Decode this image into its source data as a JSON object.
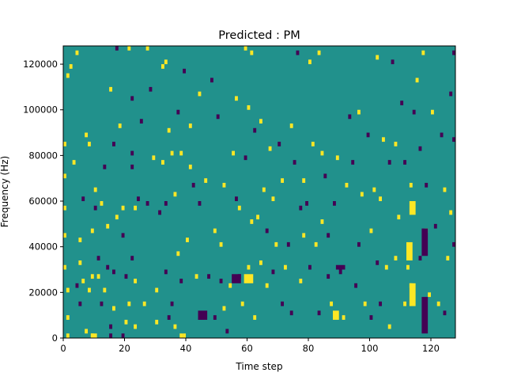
{
  "chart_data": {
    "type": "heatmap",
    "title": "Predicted : PM",
    "xlabel": "Time step",
    "ylabel": "Frequency (Hz)",
    "xlim": [
      0,
      128
    ],
    "ylim": [
      0,
      128000
    ],
    "x_ticks": [
      0,
      20,
      40,
      60,
      80,
      100,
      120
    ],
    "x_tick_labels": [
      "0",
      "20",
      "40",
      "60",
      "80",
      "100",
      "120"
    ],
    "y_ticks": [
      0,
      20000,
      40000,
      60000,
      80000,
      100000,
      120000
    ],
    "y_tick_labels": [
      "0",
      "20000",
      "40000",
      "60000",
      "80000",
      "100000",
      "120000"
    ],
    "grid": false,
    "colormap": "viridis",
    "background_value": 0,
    "colors": {
      "-1": "#440154",
      "0": "#21918c",
      "1": "#fde725"
    },
    "cell_height_hz": 2000,
    "cells": [
      [
        0,
        70000,
        1
      ],
      [
        0,
        84000,
        1
      ],
      [
        0,
        56000,
        1
      ],
      [
        0,
        44000,
        1
      ],
      [
        0,
        30000,
        1
      ],
      [
        1,
        20000,
        1
      ],
      [
        1,
        8000,
        1
      ],
      [
        1,
        0,
        1
      ],
      [
        1,
        114000,
        1
      ],
      [
        2,
        118000,
        1
      ],
      [
        3,
        76000,
        1
      ],
      [
        4,
        124000,
        1
      ],
      [
        4,
        22000,
        -1
      ],
      [
        5,
        14000,
        -1
      ],
      [
        5,
        32000,
        1
      ],
      [
        5,
        42000,
        1
      ],
      [
        6,
        24000,
        1
      ],
      [
        6,
        60000,
        -1
      ],
      [
        7,
        88000,
        1
      ],
      [
        7,
        2000,
        1
      ],
      [
        8,
        20000,
        1
      ],
      [
        8,
        84000,
        1
      ],
      [
        9,
        26000,
        1
      ],
      [
        9,
        46000,
        1
      ],
      [
        9,
        0,
        1
      ],
      [
        10,
        64000,
        1
      ],
      [
        10,
        56000,
        -1
      ],
      [
        11,
        26000,
        1
      ],
      [
        11,
        34000,
        -1
      ],
      [
        12,
        14000,
        -1
      ],
      [
        12,
        58000,
        1
      ],
      [
        13,
        74000,
        -1
      ],
      [
        13,
        20000,
        1
      ],
      [
        14,
        48000,
        1
      ],
      [
        14,
        30000,
        -1
      ],
      [
        15,
        108000,
        1
      ],
      [
        15,
        4000,
        -1
      ],
      [
        15,
        0,
        -1
      ],
      [
        16,
        28000,
        -1
      ],
      [
        16,
        12000,
        1
      ],
      [
        16,
        84000,
        -1
      ],
      [
        17,
        52000,
        1
      ],
      [
        17,
        126000,
        -1
      ],
      [
        18,
        92000,
        1
      ],
      [
        19,
        56000,
        1
      ],
      [
        19,
        44000,
        -1
      ],
      [
        19,
        0,
        -1
      ],
      [
        20,
        26000,
        -1
      ],
      [
        20,
        6000,
        1
      ],
      [
        21,
        126000,
        1
      ],
      [
        21,
        14000,
        1
      ],
      [
        22,
        80000,
        -1
      ],
      [
        22,
        74000,
        -1
      ],
      [
        22,
        104000,
        -1
      ],
      [
        22,
        34000,
        -1
      ],
      [
        23,
        56000,
        1
      ],
      [
        23,
        24000,
        1
      ],
      [
        23,
        4000,
        1
      ],
      [
        24,
        60000,
        -1
      ],
      [
        25,
        94000,
        -1
      ],
      [
        26,
        14000,
        1
      ],
      [
        27,
        126000,
        1
      ],
      [
        27,
        58000,
        -1
      ],
      [
        28,
        108000,
        -1
      ],
      [
        29,
        78000,
        1
      ],
      [
        30,
        20000,
        1
      ],
      [
        30,
        6000,
        1
      ],
      [
        31,
        54000,
        -1
      ],
      [
        32,
        118000,
        1
      ],
      [
        32,
        76000,
        1
      ],
      [
        33,
        28000,
        -1
      ],
      [
        33,
        58000,
        -1
      ],
      [
        33,
        120000,
        1
      ],
      [
        34,
        8000,
        -1
      ],
      [
        34,
        90000,
        1
      ],
      [
        35,
        80000,
        1
      ],
      [
        35,
        14000,
        -1
      ],
      [
        36,
        62000,
        1
      ],
      [
        36,
        4000,
        1
      ],
      [
        37,
        98000,
        -1
      ],
      [
        37,
        36000,
        1
      ],
      [
        38,
        80000,
        1
      ],
      [
        38,
        24000,
        -1
      ],
      [
        38,
        0,
        1
      ],
      [
        39,
        0,
        1
      ],
      [
        39,
        116000,
        -1
      ],
      [
        40,
        42000,
        1
      ],
      [
        41,
        74000,
        1
      ],
      [
        41,
        92000,
        1
      ],
      [
        42,
        66000,
        -1
      ],
      [
        43,
        26000,
        1
      ],
      [
        44,
        106000,
        1
      ],
      [
        44,
        58000,
        -1
      ],
      [
        44,
        8000,
        -1
      ],
      [
        45,
        8000,
        -1
      ],
      [
        46,
        68000,
        1
      ],
      [
        47,
        26000,
        -1
      ],
      [
        48,
        112000,
        -1
      ],
      [
        49,
        46000,
        1
      ],
      [
        49,
        8000,
        -1
      ],
      [
        50,
        96000,
        -1
      ],
      [
        51,
        40000,
        1
      ],
      [
        51,
        24000,
        -1
      ],
      [
        52,
        66000,
        1
      ],
      [
        52,
        12000,
        1
      ],
      [
        53,
        2000,
        -1
      ],
      [
        54,
        22000,
        1
      ],
      [
        55,
        80000,
        1
      ],
      [
        56,
        104000,
        1
      ],
      [
        56,
        60000,
        -1
      ],
      [
        57,
        56000,
        1
      ],
      [
        57,
        26000,
        -1
      ],
      [
        58,
        14000,
        1
      ],
      [
        59,
        126000,
        1
      ],
      [
        59,
        78000,
        -1
      ],
      [
        60,
        30000,
        1
      ],
      [
        60,
        100000,
        1
      ],
      [
        61,
        124000,
        1
      ],
      [
        61,
        50000,
        1
      ],
      [
        62,
        90000,
        -1
      ],
      [
        62,
        8000,
        1
      ],
      [
        63,
        52000,
        1
      ],
      [
        64,
        32000,
        1
      ],
      [
        64,
        94000,
        1
      ],
      [
        65,
        64000,
        1
      ],
      [
        66,
        46000,
        -1
      ],
      [
        66,
        22000,
        1
      ],
      [
        67,
        82000,
        1
      ],
      [
        68,
        60000,
        1
      ],
      [
        68,
        28000,
        -1
      ],
      [
        69,
        40000,
        1
      ],
      [
        70,
        84000,
        -1
      ],
      [
        71,
        14000,
        -1
      ],
      [
        71,
        68000,
        1
      ],
      [
        72,
        30000,
        1
      ],
      [
        73,
        40000,
        -1
      ],
      [
        74,
        92000,
        1
      ],
      [
        74,
        10000,
        -1
      ],
      [
        75,
        76000,
        -1
      ],
      [
        76,
        124000,
        -1
      ],
      [
        77,
        24000,
        1
      ],
      [
        77,
        56000,
        -1
      ],
      [
        78,
        44000,
        1
      ],
      [
        78,
        68000,
        1
      ],
      [
        79,
        58000,
        -1
      ],
      [
        80,
        30000,
        -1
      ],
      [
        80,
        120000,
        1
      ],
      [
        81,
        84000,
        1
      ],
      [
        82,
        40000,
        1
      ],
      [
        83,
        124000,
        1
      ],
      [
        83,
        10000,
        -1
      ],
      [
        84,
        80000,
        1
      ],
      [
        84,
        50000,
        1
      ],
      [
        85,
        70000,
        -1
      ],
      [
        86,
        44000,
        -1
      ],
      [
        86,
        26000,
        -1
      ],
      [
        87,
        14000,
        1
      ],
      [
        88,
        58000,
        -1
      ],
      [
        89,
        78000,
        1
      ],
      [
        90,
        28000,
        -1
      ],
      [
        91,
        8000,
        1
      ],
      [
        92,
        66000,
        1
      ],
      [
        93,
        96000,
        -1
      ],
      [
        94,
        76000,
        -1
      ],
      [
        95,
        22000,
        -1
      ],
      [
        96,
        98000,
        1
      ],
      [
        96,
        40000,
        -1
      ],
      [
        97,
        62000,
        1
      ],
      [
        98,
        14000,
        1
      ],
      [
        99,
        88000,
        -1
      ],
      [
        100,
        46000,
        1
      ],
      [
        100,
        8000,
        -1
      ],
      [
        101,
        64000,
        1
      ],
      [
        102,
        122000,
        1
      ],
      [
        102,
        32000,
        -1
      ],
      [
        103,
        14000,
        -1
      ],
      [
        103,
        60000,
        1
      ],
      [
        104,
        86000,
        1
      ],
      [
        105,
        30000,
        1
      ],
      [
        106,
        76000,
        -1
      ],
      [
        106,
        4000,
        1
      ],
      [
        107,
        120000,
        -1
      ],
      [
        108,
        84000,
        1
      ],
      [
        108,
        34000,
        1
      ],
      [
        109,
        52000,
        1
      ],
      [
        110,
        102000,
        -1
      ],
      [
        111,
        14000,
        1
      ],
      [
        111,
        76000,
        -1
      ],
      [
        112,
        30000,
        1
      ],
      [
        113,
        66000,
        1
      ],
      [
        113,
        22000,
        1
      ],
      [
        114,
        98000,
        -1
      ],
      [
        115,
        112000,
        1
      ],
      [
        116,
        82000,
        -1
      ],
      [
        116,
        34000,
        -1
      ],
      [
        117,
        124000,
        1
      ],
      [
        118,
        66000,
        -1
      ],
      [
        118,
        46000,
        1
      ],
      [
        119,
        18000,
        1
      ],
      [
        120,
        98000,
        1
      ],
      [
        121,
        48000,
        -1
      ],
      [
        122,
        14000,
        1
      ],
      [
        123,
        88000,
        -1
      ],
      [
        124,
        64000,
        1
      ],
      [
        124,
        10000,
        -1
      ],
      [
        125,
        34000,
        1
      ],
      [
        126,
        106000,
        -1
      ],
      [
        126,
        54000,
        1
      ],
      [
        127,
        86000,
        -1
      ],
      [
        127,
        124000,
        -1
      ],
      [
        127,
        40000,
        -1
      ]
    ],
    "blocks": [
      [
        59,
        62,
        24000,
        28000,
        1
      ],
      [
        55,
        58,
        24000,
        28000,
        -1
      ],
      [
        88,
        90,
        8000,
        12000,
        1
      ],
      [
        112,
        114,
        34000,
        42000,
        1
      ],
      [
        113,
        115,
        14000,
        24000,
        1
      ],
      [
        117,
        119,
        2000,
        18000,
        -1
      ],
      [
        113,
        115,
        54000,
        60000,
        1
      ],
      [
        117,
        119,
        36000,
        48000,
        -1
      ],
      [
        44,
        47,
        8000,
        12000,
        -1
      ],
      [
        89,
        92,
        30000,
        32000,
        -1
      ],
      [
        9,
        11,
        0,
        2000,
        1
      ]
    ]
  }
}
